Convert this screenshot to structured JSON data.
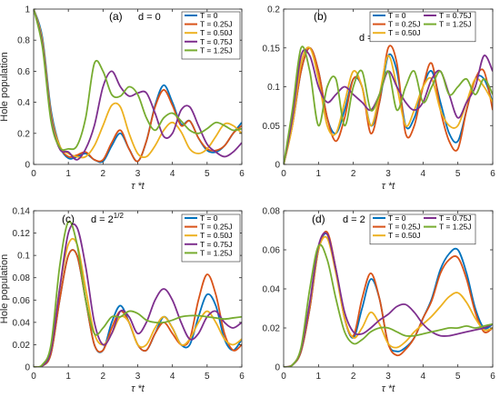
{
  "colors": {
    "T0": "#0072bd",
    "T025": "#d95319",
    "T050": "#edb120",
    "T075": "#7e2f8e",
    "T125": "#77ac30"
  },
  "chart_data": [
    {
      "type": "line",
      "panel_label": "(a)",
      "annotation": "d = 0",
      "ylabel": "Hole population",
      "xlabel": "τ *t",
      "xlim": [
        0,
        6
      ],
      "ylim": [
        0,
        1
      ],
      "xticks": [
        "0",
        "1",
        "2",
        "3",
        "4",
        "5",
        "6"
      ],
      "yticks": [
        "0",
        "0.2",
        "0.4",
        "0.6",
        "0.8",
        "1"
      ],
      "x": [
        0,
        0.25,
        0.5,
        0.75,
        1,
        1.25,
        1.5,
        1.75,
        2,
        2.25,
        2.5,
        2.75,
        3,
        3.25,
        3.5,
        3.75,
        4,
        4.25,
        4.5,
        4.75,
        5,
        5.25,
        5.5,
        5.75,
        6
      ],
      "series": [
        {
          "name": "T = 0",
          "values": [
            1,
            0.82,
            0.35,
            0.12,
            0.04,
            0.05,
            0.07,
            0.03,
            0.02,
            0.12,
            0.2,
            0.1,
            0.02,
            0.15,
            0.38,
            0.51,
            0.4,
            0.26,
            0.28,
            0.17,
            0.09,
            0.08,
            0.12,
            0.2,
            0.27
          ]
        },
        {
          "name": "T = 0.25J",
          "values": [
            1,
            0.8,
            0.33,
            0.12,
            0.05,
            0.06,
            0.08,
            0.03,
            0.03,
            0.14,
            0.22,
            0.1,
            0.02,
            0.15,
            0.37,
            0.48,
            0.38,
            0.25,
            0.28,
            0.17,
            0.1,
            0.09,
            0.12,
            0.2,
            0.25
          ]
        },
        {
          "name": "T = 0.50J",
          "values": [
            1,
            0.8,
            0.32,
            0.12,
            0.07,
            0.05,
            0.05,
            0.12,
            0.25,
            0.38,
            0.37,
            0.2,
            0.07,
            0.05,
            0.12,
            0.22,
            0.27,
            0.21,
            0.1,
            0.07,
            0.1,
            0.18,
            0.26,
            0.25,
            0.2
          ]
        },
        {
          "name": "T = 0.75J",
          "values": [
            1,
            0.78,
            0.3,
            0.1,
            0.08,
            0.03,
            0.1,
            0.25,
            0.5,
            0.6,
            0.5,
            0.44,
            0.46,
            0.46,
            0.33,
            0.18,
            0.2,
            0.35,
            0.37,
            0.25,
            0.13,
            0.08,
            0.05,
            0.08,
            0.14
          ]
        },
        {
          "name": "T = 1.25J",
          "values": [
            1,
            0.76,
            0.28,
            0.11,
            0.1,
            0.12,
            0.3,
            0.65,
            0.6,
            0.45,
            0.44,
            0.5,
            0.45,
            0.3,
            0.22,
            0.3,
            0.33,
            0.28,
            0.22,
            0.2,
            0.23,
            0.27,
            0.25,
            0.22,
            0.23
          ]
        }
      ]
    },
    {
      "type": "line",
      "panel_label": "(b)",
      "annotation": "d = 1",
      "ylabel": "",
      "xlabel": "τ *t",
      "xlim": [
        0,
        6
      ],
      "ylim": [
        0,
        0.2
      ],
      "xticks": [
        "0",
        "1",
        "2",
        "3",
        "4",
        "5",
        "6"
      ],
      "yticks": [
        "0",
        "0.05",
        "0.1",
        "0.15",
        "0.2"
      ],
      "x": [
        0,
        0.25,
        0.5,
        0.75,
        1,
        1.25,
        1.5,
        1.75,
        2,
        2.25,
        2.5,
        2.75,
        3,
        3.25,
        3.5,
        3.75,
        4,
        4.25,
        4.5,
        4.75,
        5,
        5.25,
        5.5,
        5.75,
        6
      ],
      "series": [
        {
          "name": "T = 0",
          "values": [
            0,
            0.05,
            0.12,
            0.15,
            0.12,
            0.06,
            0.04,
            0.07,
            0.11,
            0.1,
            0.05,
            0.08,
            0.14,
            0.12,
            0.05,
            0.06,
            0.1,
            0.12,
            0.08,
            0.04,
            0.03,
            0.07,
            0.11,
            0.11,
            0.08
          ]
        },
        {
          "name": "T = 0.25J",
          "values": [
            0,
            0.05,
            0.12,
            0.15,
            0.12,
            0.06,
            0.03,
            0.06,
            0.11,
            0.1,
            0.04,
            0.08,
            0.15,
            0.13,
            0.04,
            0.05,
            0.1,
            0.13,
            0.07,
            0.03,
            0.02,
            0.07,
            0.11,
            0.12,
            0.07
          ]
        },
        {
          "name": "T = 0.50J",
          "values": [
            0,
            0.05,
            0.13,
            0.15,
            0.11,
            0.05,
            0.04,
            0.08,
            0.12,
            0.1,
            0.05,
            0.09,
            0.14,
            0.1,
            0.05,
            0.07,
            0.1,
            0.11,
            0.07,
            0.05,
            0.05,
            0.08,
            0.11,
            0.1,
            0.08
          ]
        },
        {
          "name": "T = 0.75J",
          "values": [
            0,
            0.06,
            0.14,
            0.14,
            0.1,
            0.08,
            0.09,
            0.1,
            0.09,
            0.08,
            0.07,
            0.09,
            0.12,
            0.1,
            0.08,
            0.07,
            0.08,
            0.11,
            0.12,
            0.09,
            0.06,
            0.08,
            0.1,
            0.14,
            0.12
          ]
        },
        {
          "name": "T = 1.25J",
          "values": [
            0,
            0.07,
            0.15,
            0.12,
            0.05,
            0.1,
            0.11,
            0.05,
            0.1,
            0.12,
            0.07,
            0.09,
            0.12,
            0.07,
            0.1,
            0.12,
            0.08,
            0.1,
            0.12,
            0.09,
            0.1,
            0.11,
            0.09,
            0.11,
            0.09
          ]
        }
      ]
    },
    {
      "type": "line",
      "panel_label": "(c)",
      "annotation": "d = 2",
      "annotation_exponent": "1/2",
      "ylabel": "Hole population",
      "xlabel": "τ *t",
      "xlim": [
        0,
        6
      ],
      "ylim": [
        0,
        0.14
      ],
      "xticks": [
        "0",
        "1",
        "2",
        "3",
        "4",
        "5",
        "6"
      ],
      "yticks": [
        "0",
        "0.02",
        "0.04",
        "0.06",
        "0.08",
        "0.1",
        "0.12",
        "0.14"
      ],
      "x": [
        0,
        0.25,
        0.5,
        0.75,
        1,
        1.25,
        1.5,
        1.75,
        2,
        2.25,
        2.5,
        2.75,
        3,
        3.25,
        3.5,
        3.75,
        4,
        4.25,
        4.5,
        4.75,
        5,
        5.25,
        5.5,
        5.75,
        6
      ],
      "series": [
        {
          "name": "T = 0",
          "values": [
            0,
            0.001,
            0.012,
            0.06,
            0.1,
            0.1,
            0.06,
            0.02,
            0.015,
            0.04,
            0.055,
            0.04,
            0.02,
            0.015,
            0.03,
            0.045,
            0.035,
            0.02,
            0.02,
            0.045,
            0.065,
            0.055,
            0.025,
            0.015,
            0.025
          ]
        },
        {
          "name": "T = 0.25J",
          "values": [
            0,
            0.001,
            0.012,
            0.06,
            0.1,
            0.1,
            0.06,
            0.02,
            0.015,
            0.035,
            0.05,
            0.04,
            0.02,
            0.015,
            0.03,
            0.04,
            0.03,
            0.02,
            0.025,
            0.06,
            0.083,
            0.065,
            0.03,
            0.015,
            0.02
          ]
        },
        {
          "name": "T = 0.50J",
          "values": [
            0,
            0.001,
            0.015,
            0.07,
            0.11,
            0.11,
            0.07,
            0.03,
            0.02,
            0.03,
            0.045,
            0.04,
            0.02,
            0.02,
            0.035,
            0.045,
            0.035,
            0.02,
            0.025,
            0.04,
            0.05,
            0.04,
            0.025,
            0.02,
            0.025
          ]
        },
        {
          "name": "T = 0.75J",
          "values": [
            0,
            0.001,
            0.015,
            0.07,
            0.12,
            0.125,
            0.09,
            0.04,
            0.02,
            0.03,
            0.05,
            0.045,
            0.03,
            0.04,
            0.06,
            0.07,
            0.06,
            0.04,
            0.025,
            0.03,
            0.045,
            0.05,
            0.04,
            0.035,
            0.04
          ]
        },
        {
          "name": "T = 1.25J",
          "values": [
            0,
            0.002,
            0.02,
            0.09,
            0.13,
            0.11,
            0.06,
            0.03,
            0.035,
            0.045,
            0.045,
            0.05,
            0.048,
            0.042,
            0.04,
            0.04,
            0.042,
            0.045,
            0.046,
            0.046,
            0.045,
            0.044,
            0.043,
            0.044,
            0.045
          ]
        }
      ]
    },
    {
      "type": "line",
      "panel_label": "(d)",
      "annotation": "d = 2",
      "ylabel": "",
      "xlabel": "τ *t",
      "xlim": [
        0,
        6
      ],
      "ylim": [
        0,
        0.08
      ],
      "xticks": [
        "0",
        "1",
        "2",
        "3",
        "4",
        "5",
        "6"
      ],
      "yticks": [
        "0",
        "0.02",
        "0.04",
        "0.06",
        "0.08"
      ],
      "x": [
        0,
        0.25,
        0.5,
        0.75,
        1,
        1.25,
        1.5,
        1.75,
        2,
        2.25,
        2.5,
        2.75,
        3,
        3.25,
        3.5,
        3.75,
        4,
        4.25,
        4.5,
        4.75,
        5,
        5.25,
        5.5,
        5.75,
        6
      ],
      "series": [
        {
          "name": "T = 0",
          "values": [
            0,
            0.001,
            0.008,
            0.03,
            0.06,
            0.068,
            0.05,
            0.025,
            0.015,
            0.03,
            0.045,
            0.035,
            0.012,
            0.008,
            0.01,
            0.015,
            0.025,
            0.035,
            0.05,
            0.058,
            0.06,
            0.048,
            0.03,
            0.02,
            0.022
          ]
        },
        {
          "name": "T = 0.25J",
          "values": [
            0,
            0.001,
            0.008,
            0.03,
            0.06,
            0.069,
            0.05,
            0.025,
            0.016,
            0.035,
            0.048,
            0.035,
            0.012,
            0.006,
            0.009,
            0.015,
            0.025,
            0.034,
            0.048,
            0.055,
            0.056,
            0.045,
            0.028,
            0.018,
            0.02
          ]
        },
        {
          "name": "T = 0.50J",
          "values": [
            0,
            0.001,
            0.009,
            0.032,
            0.06,
            0.066,
            0.048,
            0.025,
            0.015,
            0.02,
            0.028,
            0.022,
            0.012,
            0.01,
            0.013,
            0.018,
            0.022,
            0.026,
            0.031,
            0.036,
            0.038,
            0.033,
            0.025,
            0.019,
            0.02
          ]
        },
        {
          "name": "T = 0.75J",
          "values": [
            0,
            0.001,
            0.009,
            0.033,
            0.062,
            0.068,
            0.05,
            0.028,
            0.018,
            0.017,
            0.02,
            0.024,
            0.027,
            0.031,
            0.032,
            0.028,
            0.022,
            0.018,
            0.016,
            0.016,
            0.017,
            0.018,
            0.019,
            0.02,
            0.022
          ]
        },
        {
          "name": "T = 1.25J",
          "values": [
            0,
            0.001,
            0.01,
            0.04,
            0.062,
            0.055,
            0.035,
            0.018,
            0.012,
            0.014,
            0.018,
            0.02,
            0.02,
            0.018,
            0.016,
            0.016,
            0.017,
            0.018,
            0.019,
            0.02,
            0.02,
            0.021,
            0.02,
            0.021,
            0.022
          ]
        }
      ]
    }
  ]
}
